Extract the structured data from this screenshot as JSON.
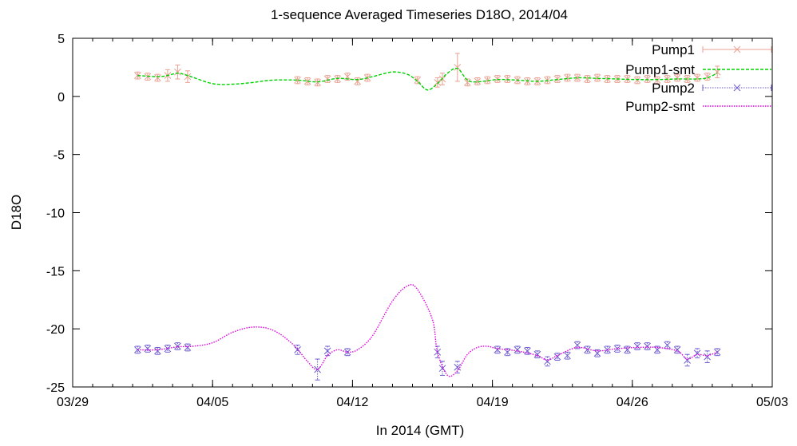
{
  "chart_data": {
    "type": "line",
    "title": "1-sequence Averaged Timeseries D18O, 2014/04",
    "xlabel": "In 2014 (GMT)",
    "ylabel": "D18O",
    "xlim": [
      "2014-03-29",
      "2014-05-03"
    ],
    "ylim": [
      -25,
      5
    ],
    "x_ticks": [
      "03/29",
      "04/05",
      "04/12",
      "04/19",
      "04/26",
      "05/03"
    ],
    "y_ticks": [
      "5",
      "0",
      "-5",
      "-10",
      "-15",
      "-20",
      "-25"
    ],
    "grid": false,
    "legend_position": "top-right",
    "series": [
      {
        "name": "Pump1",
        "style": "points-errorbars",
        "marker": "x",
        "color": "#e8a090",
        "points": [
          [
            "2014-04-01 06:00",
            1.8,
            0.3
          ],
          [
            "2014-04-01 18:00",
            1.7,
            0.3
          ],
          [
            "2014-04-02 06:00",
            1.6,
            0.3
          ],
          [
            "2014-04-02 18:00",
            1.8,
            0.5
          ],
          [
            "2014-04-03 06:00",
            2.1,
            0.6
          ],
          [
            "2014-04-03 18:00",
            1.7,
            0.5
          ],
          [
            "2014-04-09 06:00",
            1.4,
            0.3
          ],
          [
            "2014-04-09 18:00",
            1.3,
            0.3
          ],
          [
            "2014-04-10 06:00",
            1.2,
            0.3
          ],
          [
            "2014-04-10 18:00",
            1.5,
            0.3
          ],
          [
            "2014-04-11 06:00",
            1.5,
            0.3
          ],
          [
            "2014-04-11 18:00",
            1.7,
            0.3
          ],
          [
            "2014-04-12 06:00",
            1.3,
            0.3
          ],
          [
            "2014-04-12 18:00",
            1.6,
            0.3
          ],
          [
            "2014-04-15 06:00",
            1.4,
            0.3
          ],
          [
            "2014-04-16 06:00",
            1.2,
            0.4
          ],
          [
            "2014-04-16 12:00",
            1.5,
            0.5
          ],
          [
            "2014-04-17 06:00",
            2.5,
            1.2
          ],
          [
            "2014-04-17 18:00",
            1.2,
            0.3
          ],
          [
            "2014-04-18 06:00",
            1.3,
            0.3
          ],
          [
            "2014-04-18 18:00",
            1.4,
            0.3
          ],
          [
            "2014-04-19 06:00",
            1.5,
            0.3
          ],
          [
            "2014-04-19 18:00",
            1.5,
            0.3
          ],
          [
            "2014-04-20 06:00",
            1.4,
            0.3
          ],
          [
            "2014-04-20 18:00",
            1.3,
            0.3
          ],
          [
            "2014-04-21 06:00",
            1.3,
            0.3
          ],
          [
            "2014-04-21 18:00",
            1.4,
            0.3
          ],
          [
            "2014-04-22 06:00",
            1.5,
            0.3
          ],
          [
            "2014-04-22 18:00",
            1.6,
            0.3
          ],
          [
            "2014-04-23 06:00",
            1.6,
            0.3
          ],
          [
            "2014-04-23 18:00",
            1.5,
            0.3
          ],
          [
            "2014-04-24 06:00",
            1.6,
            0.3
          ],
          [
            "2014-04-24 18:00",
            1.5,
            0.3
          ],
          [
            "2014-04-25 06:00",
            1.5,
            0.3
          ],
          [
            "2014-04-25 18:00",
            1.5,
            0.3
          ],
          [
            "2014-04-26 06:00",
            1.4,
            0.3
          ],
          [
            "2014-04-26 18:00",
            1.5,
            0.3
          ],
          [
            "2014-04-27 06:00",
            1.4,
            0.3
          ],
          [
            "2014-04-27 18:00",
            1.5,
            0.3
          ],
          [
            "2014-04-28 06:00",
            1.6,
            0.3
          ],
          [
            "2014-04-28 18:00",
            1.5,
            0.3
          ],
          [
            "2014-04-29 06:00",
            1.6,
            0.3
          ],
          [
            "2014-04-29 18:00",
            1.7,
            0.3
          ],
          [
            "2014-04-30 06:00",
            2.1,
            0.5
          ]
        ]
      },
      {
        "name": "Pump1-smt",
        "style": "line-dashed",
        "color": "#00d000",
        "points": [
          [
            "2014-04-01 06:00",
            1.8
          ],
          [
            "2014-04-02 06:00",
            1.7
          ],
          [
            "2014-04-02 18:00",
            1.8
          ],
          [
            "2014-04-03 06:00",
            2.0
          ],
          [
            "2014-04-03 18:00",
            1.8
          ],
          [
            "2014-04-05 00:00",
            1.1
          ],
          [
            "2014-04-06 00:00",
            1.05
          ],
          [
            "2014-04-07 00:00",
            1.2
          ],
          [
            "2014-04-08 00:00",
            1.4
          ],
          [
            "2014-04-09 06:00",
            1.4
          ],
          [
            "2014-04-10 06:00",
            1.25
          ],
          [
            "2014-04-11 06:00",
            1.55
          ],
          [
            "2014-04-12 06:00",
            1.45
          ],
          [
            "2014-04-13 00:00",
            1.7
          ],
          [
            "2014-04-14 00:00",
            2.1
          ],
          [
            "2014-04-14 18:00",
            1.9
          ],
          [
            "2014-04-15 06:00",
            1.3
          ],
          [
            "2014-04-15 18:00",
            0.55
          ],
          [
            "2014-04-16 06:00",
            1.1
          ],
          [
            "2014-04-16 18:00",
            2.0
          ],
          [
            "2014-04-17 06:00",
            2.4
          ],
          [
            "2014-04-17 18:00",
            1.4
          ],
          [
            "2014-04-18 06:00",
            1.25
          ],
          [
            "2014-04-19 06:00",
            1.45
          ],
          [
            "2014-04-20 06:00",
            1.4
          ],
          [
            "2014-04-21 06:00",
            1.3
          ],
          [
            "2014-04-22 06:00",
            1.45
          ],
          [
            "2014-04-23 06:00",
            1.6
          ],
          [
            "2014-04-24 06:00",
            1.55
          ],
          [
            "2014-04-25 06:00",
            1.5
          ],
          [
            "2014-04-26 06:00",
            1.45
          ],
          [
            "2014-04-27 06:00",
            1.45
          ],
          [
            "2014-04-28 06:00",
            1.5
          ],
          [
            "2014-04-29 06:00",
            1.5
          ],
          [
            "2014-04-29 18:00",
            1.6
          ],
          [
            "2014-04-30 06:00",
            2.0
          ]
        ]
      },
      {
        "name": "Pump2",
        "style": "points-errorbars",
        "marker": "x",
        "color": "#6a5acd",
        "points": [
          [
            "2014-04-01 06:00",
            -21.8,
            0.3
          ],
          [
            "2014-04-01 18:00",
            -21.7,
            0.3
          ],
          [
            "2014-04-02 06:00",
            -21.9,
            0.3
          ],
          [
            "2014-04-02 18:00",
            -21.7,
            0.3
          ],
          [
            "2014-04-03 06:00",
            -21.5,
            0.3
          ],
          [
            "2014-04-03 18:00",
            -21.6,
            0.3
          ],
          [
            "2014-04-09 06:00",
            -21.8,
            0.4
          ],
          [
            "2014-04-10 06:00",
            -23.5,
            0.9
          ],
          [
            "2014-04-10 18:00",
            -21.9,
            0.4
          ],
          [
            "2014-04-11 18:00",
            -22.0,
            0.3
          ],
          [
            "2014-04-16 06:00",
            -22.0,
            0.5
          ],
          [
            "2014-04-16 12:00",
            -23.4,
            0.6
          ],
          [
            "2014-04-17 06:00",
            -23.3,
            0.5
          ],
          [
            "2014-04-19 06:00",
            -21.8,
            0.3
          ],
          [
            "2014-04-19 18:00",
            -22.0,
            0.3
          ],
          [
            "2014-04-20 06:00",
            -21.8,
            0.3
          ],
          [
            "2014-04-20 18:00",
            -21.9,
            0.3
          ],
          [
            "2014-04-21 06:00",
            -22.2,
            0.3
          ],
          [
            "2014-04-21 18:00",
            -22.8,
            0.4
          ],
          [
            "2014-04-22 06:00",
            -22.4,
            0.3
          ],
          [
            "2014-04-22 18:00",
            -22.3,
            0.3
          ],
          [
            "2014-04-23 06:00",
            -21.4,
            0.3
          ],
          [
            "2014-04-23 18:00",
            -21.8,
            0.3
          ],
          [
            "2014-04-24 06:00",
            -22.1,
            0.3
          ],
          [
            "2014-04-24 18:00",
            -21.8,
            0.3
          ],
          [
            "2014-04-25 06:00",
            -21.7,
            0.3
          ],
          [
            "2014-04-25 18:00",
            -21.8,
            0.3
          ],
          [
            "2014-04-26 06:00",
            -21.5,
            0.3
          ],
          [
            "2014-04-26 18:00",
            -21.5,
            0.3
          ],
          [
            "2014-04-27 06:00",
            -21.8,
            0.3
          ],
          [
            "2014-04-27 18:00",
            -21.4,
            0.3
          ],
          [
            "2014-04-28 06:00",
            -21.8,
            0.3
          ],
          [
            "2014-04-28 18:00",
            -22.7,
            0.5
          ],
          [
            "2014-04-29 06:00",
            -22.1,
            0.4
          ],
          [
            "2014-04-29 18:00",
            -22.4,
            0.5
          ],
          [
            "2014-04-30 06:00",
            -22.0,
            0.3
          ]
        ]
      },
      {
        "name": "Pump2-smt",
        "style": "line-dotted",
        "color": "#e000e0",
        "points": [
          [
            "2014-04-01 06:00",
            -21.8
          ],
          [
            "2014-04-02 06:00",
            -21.8
          ],
          [
            "2014-04-03 06:00",
            -21.55
          ],
          [
            "2014-04-04 00:00",
            -21.5
          ],
          [
            "2014-04-05 00:00",
            -21.2
          ],
          [
            "2014-04-06 00:00",
            -20.3
          ],
          [
            "2014-04-07 00:00",
            -19.85
          ],
          [
            "2014-04-08 00:00",
            -20.1
          ],
          [
            "2014-04-09 00:00",
            -21.3
          ],
          [
            "2014-04-09 18:00",
            -22.8
          ],
          [
            "2014-04-10 06:00",
            -23.5
          ],
          [
            "2014-04-10 18:00",
            -22.3
          ],
          [
            "2014-04-11 06:00",
            -21.8
          ],
          [
            "2014-04-11 18:00",
            -22.0
          ],
          [
            "2014-04-12 06:00",
            -21.8
          ],
          [
            "2014-04-13 00:00",
            -20.6
          ],
          [
            "2014-04-14 00:00",
            -17.6
          ],
          [
            "2014-04-14 18:00",
            -16.3
          ],
          [
            "2014-04-15 06:00",
            -16.6
          ],
          [
            "2014-04-16 00:00",
            -19.2
          ],
          [
            "2014-04-16 06:00",
            -22.0
          ],
          [
            "2014-04-16 18:00",
            -24.0
          ],
          [
            "2014-04-17 06:00",
            -23.6
          ],
          [
            "2014-04-17 18:00",
            -22.2
          ],
          [
            "2014-04-18 06:00",
            -21.6
          ],
          [
            "2014-04-18 18:00",
            -21.5
          ],
          [
            "2014-04-19 06:00",
            -21.7
          ],
          [
            "2014-04-20 06:00",
            -21.9
          ],
          [
            "2014-04-21 06:00",
            -22.3
          ],
          [
            "2014-04-21 18:00",
            -22.7
          ],
          [
            "2014-04-22 06:00",
            -22.3
          ],
          [
            "2014-04-23 06:00",
            -21.6
          ],
          [
            "2014-04-24 06:00",
            -21.9
          ],
          [
            "2014-04-25 06:00",
            -21.7
          ],
          [
            "2014-04-26 06:00",
            -21.6
          ],
          [
            "2014-04-27 06:00",
            -21.6
          ],
          [
            "2014-04-28 06:00",
            -21.9
          ],
          [
            "2014-04-28 18:00",
            -22.6
          ],
          [
            "2014-04-29 06:00",
            -22.2
          ],
          [
            "2014-04-29 18:00",
            -22.3
          ],
          [
            "2014-04-30 06:00",
            -22.0
          ]
        ]
      }
    ]
  }
}
